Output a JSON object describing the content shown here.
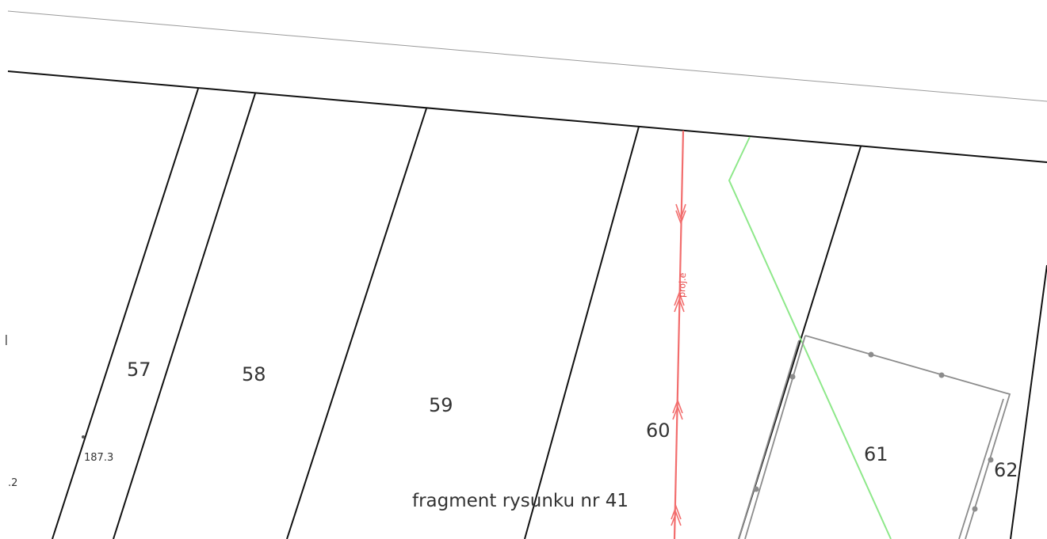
{
  "map": {
    "parcels": [
      {
        "id": "57",
        "label": "57"
      },
      {
        "id": "58",
        "label": "58"
      },
      {
        "id": "59",
        "label": "59"
      },
      {
        "id": "60",
        "label": "60"
      },
      {
        "id": "61",
        "label": "61"
      },
      {
        "id": "62",
        "label": "62"
      }
    ],
    "measurement_label": "187.3",
    "edge_fragment_left_top": "ǀ",
    "edge_fragment_left_bottom": ".2",
    "projected_line_label": "proj.e",
    "caption": "fragment rysunku nr 41",
    "colors": {
      "parcel_boundary": "#111111",
      "projected_line": "#f26d6d",
      "green_boundary": "#8ee88a",
      "building_outline": "#8c8c8c",
      "background": "#ffffff"
    }
  }
}
